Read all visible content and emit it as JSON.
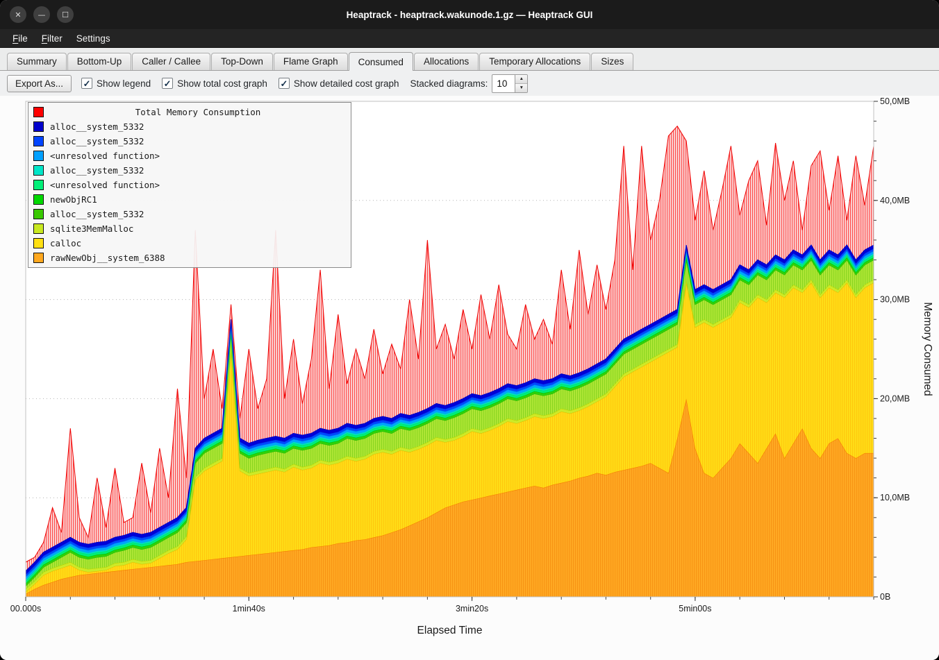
{
  "window": {
    "title": "Heaptrack - heaptrack.wakunode.1.gz — Heaptrack GUI",
    "controls": {
      "close": "✕",
      "minimize": "—",
      "maximize": "☐"
    }
  },
  "menu": {
    "items": [
      {
        "label": "File",
        "accel_index": 0
      },
      {
        "label": "Filter",
        "accel_index": 0
      },
      {
        "label": "Settings",
        "accel_index": 6
      }
    ]
  },
  "tabs": [
    "Summary",
    "Bottom-Up",
    "Caller / Callee",
    "Top-Down",
    "Flame Graph",
    "Consumed",
    "Allocations",
    "Temporary Allocations",
    "Sizes"
  ],
  "active_tab": "Consumed",
  "toolbar": {
    "export_button": "Export As...",
    "check_glyph": "✓",
    "checkboxes": [
      {
        "label": "Show legend",
        "checked": true
      },
      {
        "label": "Show total cost graph",
        "checked": true
      },
      {
        "label": "Show detailed cost graph",
        "checked": true
      }
    ],
    "stacked_label": "Stacked diagrams:",
    "stacked_value": "10",
    "spin_up_icon": "▲",
    "spin_down_icon": "▼"
  },
  "chart_data": {
    "type": "area",
    "stacked": true,
    "title": "Total Memory Consumption",
    "xlabel": "Elapsed Time",
    "ylabel": "Memory Consumed",
    "ylim": [
      0,
      50
    ],
    "y_unit": "MB",
    "x_step_seconds": 4,
    "x_minor_step": 20,
    "y_minor_step": 2,
    "x_ticks": [
      {
        "t": 0,
        "label": "00.000s"
      },
      {
        "t": 100,
        "label": "1min40s"
      },
      {
        "t": 200,
        "label": "3min20s"
      },
      {
        "t": 300,
        "label": "5min00s"
      }
    ],
    "y_ticks": [
      {
        "v": 0,
        "label": "0B"
      },
      {
        "v": 10,
        "label": "10,0MB"
      },
      {
        "v": 20,
        "label": "20,0MB"
      },
      {
        "v": 30,
        "label": "30,0MB"
      },
      {
        "v": 40,
        "label": "40,0MB"
      },
      {
        "v": 50,
        "label": "50,0MB"
      }
    ],
    "legend": [
      {
        "name": "Total Memory Consumption",
        "color": "#ff0000"
      },
      {
        "name": "alloc__system_5332",
        "color": "#0000cc"
      },
      {
        "name": "alloc__system_5332",
        "color": "#0044ff"
      },
      {
        "name": "<unresolved function>",
        "color": "#00a0ff"
      },
      {
        "name": "alloc__system_5332",
        "color": "#00e6c8"
      },
      {
        "name": "<unresolved function>",
        "color": "#00f078"
      },
      {
        "name": "newObjRC1",
        "color": "#00d800"
      },
      {
        "name": "alloc__system_5332",
        "color": "#38c800"
      },
      {
        "name": "sqlite3MemMalloc",
        "color": "#c8e820"
      },
      {
        "name": "calloc",
        "color": "#ffe012"
      },
      {
        "name": "rawNewObj__system_6388",
        "color": "#ffa81e"
      }
    ],
    "total": {
      "name": "Total Memory Consumption",
      "color": "#ee0000",
      "values": [
        3.5,
        4.0,
        5.5,
        9.0,
        6.5,
        17.0,
        8.0,
        6.0,
        12.0,
        7.0,
        13.0,
        7.5,
        8.0,
        13.5,
        8.5,
        15.0,
        10.0,
        21.0,
        12.0,
        37.0,
        20.0,
        25.0,
        19.0,
        29.5,
        18.0,
        25.0,
        19.0,
        22.0,
        37.0,
        20.0,
        26.0,
        19.5,
        24.0,
        33.0,
        21.0,
        28.5,
        21.5,
        25.0,
        22.0,
        27.0,
        22.5,
        25.5,
        23.0,
        30.0,
        24.0,
        36.0,
        25.0,
        27.5,
        24.0,
        29.0,
        25.0,
        30.5,
        26.0,
        31.5,
        26.5,
        25.0,
        29.5,
        26.0,
        28.0,
        25.5,
        33.0,
        27.0,
        35.0,
        28.5,
        33.5,
        29.0,
        34.0,
        45.5,
        33.0,
        45.5,
        36.0,
        40.0,
        46.5,
        47.5,
        46.0,
        38.0,
        43.0,
        37.0,
        41.0,
        45.5,
        38.5,
        42.0,
        44.0,
        37.5,
        45.8,
        40.0,
        44.0,
        37.0,
        43.5,
        45.0,
        39.0,
        44.5,
        38.0,
        44.5,
        39.5,
        45.5
      ]
    },
    "series": [
      {
        "name": "rawNewObj__system_6388",
        "color": "#ffa81e",
        "fill": "#ffab24",
        "hatch": "#f07800",
        "line": "#f57900",
        "values": [
          0.3,
          0.8,
          1.2,
          1.5,
          1.8,
          2.0,
          2.2,
          2.3,
          2.4,
          2.5,
          2.6,
          2.7,
          2.8,
          2.9,
          3.0,
          3.1,
          3.2,
          3.3,
          3.5,
          3.6,
          3.7,
          3.8,
          3.9,
          4.0,
          4.1,
          4.2,
          4.3,
          4.4,
          4.5,
          4.6,
          4.7,
          4.8,
          5.0,
          5.1,
          5.2,
          5.4,
          5.5,
          5.7,
          5.8,
          6.0,
          6.2,
          6.5,
          6.8,
          7.2,
          7.6,
          8.0,
          8.5,
          9.0,
          9.3,
          9.6,
          9.8,
          10.0,
          10.2,
          10.4,
          10.6,
          10.8,
          11.0,
          11.2,
          11.0,
          11.3,
          11.5,
          11.7,
          12.0,
          12.2,
          12.5,
          12.3,
          12.6,
          12.8,
          13.0,
          13.2,
          13.5,
          13.0,
          12.5,
          16.0,
          20.0,
          15.0,
          12.5,
          12.0,
          13.0,
          14.0,
          15.5,
          14.5,
          13.5,
          15.0,
          16.5,
          14.0,
          15.5,
          17.0,
          15.0,
          14.0,
          15.5,
          16.0,
          14.5,
          14.0,
          14.5,
          14.5
        ]
      },
      {
        "name": "calloc",
        "color": "#ffe012",
        "fill": "#ffdf18",
        "hatch": "#ffaa00",
        "line": "#e0bc00",
        "values": [
          0.2,
          0.5,
          1.0,
          1.1,
          1.1,
          1.2,
          0.5,
          0.2,
          0.2,
          0.2,
          0.5,
          0.5,
          0.7,
          0.4,
          0.4,
          0.8,
          1.2,
          1.5,
          2.3,
          8.2,
          9.0,
          9.4,
          9.8,
          20.7,
          8.6,
          8.0,
          8.1,
          8.2,
          8.3,
          8.0,
          8.4,
          8.0,
          8.0,
          8.4,
          8.1,
          8.1,
          8.4,
          8.0,
          8.1,
          8.4,
          8.4,
          7.9,
          8.0,
          7.4,
          7.3,
          7.3,
          7.3,
          6.6,
          6.5,
          6.6,
          6.9,
          6.5,
          6.6,
          6.8,
          7.1,
          6.7,
          6.8,
          7.0,
          7.0,
          6.9,
          7.2,
          6.8,
          6.8,
          7.0,
          7.2,
          7.9,
          8.6,
          9.4,
          9.7,
          10.0,
          10.2,
          11.2,
          12.2,
          9.2,
          11.7,
          12.2,
          15.2,
          15.2,
          14.7,
          14.2,
          14.2,
          14.7,
          16.7,
          14.7,
          14.2,
          16.2,
          15.7,
          13.7,
          16.7,
          16.2,
          15.7,
          14.7,
          17.2,
          16.2,
          16.7,
          17.2
        ]
      },
      {
        "name": "sqlite3MemMalloc",
        "color": "#c8e820",
        "fill": "#cdea28",
        "line": "#b8d400",
        "constant": 0.3
      },
      {
        "name": "alloc__system_5332",
        "color": "#38c800",
        "fill": "#b2e838",
        "hatch": "#58c000",
        "line": "#30b800",
        "values": [
          0.3,
          0.4,
          0.5,
          0.6,
          0.8,
          1.0,
          1.0,
          1.0,
          1.1,
          1.1,
          1.1,
          1.2,
          1.2,
          1.2,
          1.3,
          1.3,
          1.3,
          1.4,
          1.4,
          1.4,
          1.5,
          1.5,
          1.5,
          1.5,
          1.5,
          1.5,
          1.6,
          1.6,
          1.6,
          1.6,
          1.6,
          1.7,
          1.7,
          1.7,
          1.7,
          1.7,
          1.8,
          1.8,
          1.8,
          1.8,
          1.8,
          1.8,
          1.9,
          1.9,
          1.9,
          1.9,
          1.9,
          1.9,
          2.0,
          2.0,
          2.0,
          2.0,
          2.0,
          2.0,
          2.0,
          2.0,
          2.0,
          2.0,
          2.0,
          2.0,
          2.0,
          2.0,
          2.0,
          2.0,
          2.0,
          2.0,
          2.0,
          2.0,
          2.0,
          2.0,
          2.0,
          2.0,
          2.0,
          2.0,
          2.0,
          2.0,
          2.0,
          2.0,
          2.0,
          2.0,
          2.0,
          2.0,
          2.0,
          2.0,
          2.0,
          2.0,
          2.0,
          2.0,
          2.0,
          2.0,
          2.0,
          2.0,
          2.0,
          2.0,
          2.0,
          2.0
        ]
      },
      {
        "name": "newObjRC1",
        "color": "#00d800",
        "fill": "#2ed20a",
        "line": "#00c000",
        "constant": 0.25
      },
      {
        "name": "<unresolved function>",
        "color": "#00f078",
        "fill": "#00ef78",
        "line": "#00d868",
        "constant": 0.25
      },
      {
        "name": "alloc__system_5332",
        "color": "#00e6c8",
        "fill": "#00e2c8",
        "line": "#00c8b0",
        "constant": 0.15
      },
      {
        "name": "<unresolved function>",
        "color": "#00a0ff",
        "fill": "#00a2ff",
        "line": "#0090e8",
        "constant": 0.25
      },
      {
        "name": "alloc__system_5332",
        "color": "#0044ff",
        "fill": "#0048ff",
        "line": "#0038e0",
        "constant": 0.25
      },
      {
        "name": "alloc__system_5332",
        "color": "#0000cc",
        "fill": "#0000d8",
        "line": "#0000c0",
        "constant": 0.35
      }
    ]
  }
}
